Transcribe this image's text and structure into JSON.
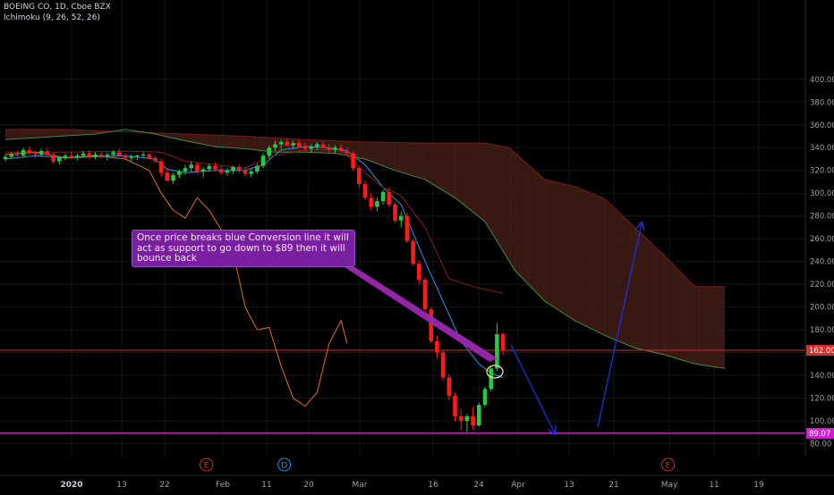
{
  "header": {
    "symbol_line": "BOEING CO, 1D, Cboe BZX",
    "indicator_line": "Ichimoku (9, 26, 52, 26)"
  },
  "annotation": {
    "text": "Once price breaks blue Conversion line it will act as support to go down to $89 then it will bounce back"
  },
  "colors": {
    "background": "#000000",
    "up_candle": "#26c846",
    "down_candle": "#ff1a1a",
    "conversion_line": "#2196f3",
    "base_line": "#8b1a1a",
    "lagging_span": "#e2701c",
    "span_a": "#3d8f3d",
    "span_b": "#7a1a1a",
    "cloud_fill": "#3a1a12",
    "level_line_red": "#d32f2f",
    "level_line_magenta": "#d020d0",
    "arrow": "#1e2fd6",
    "callout_bg": "#7b1fa2"
  },
  "chart_data": {
    "type": "candlestick",
    "title": "BOEING CO, 1D, Cboe BZX",
    "indicator": "Ichimoku (9, 26, 52, 26)",
    "ylim": [
      80,
      400
    ],
    "y_ticks": [
      "80.00",
      "100.00",
      "120.00",
      "140.00",
      "160.00",
      "180.00",
      "200.00",
      "220.00",
      "240.00",
      "260.00",
      "280.00",
      "300.00",
      "320.00",
      "340.00",
      "360.00",
      "380.00",
      "400.00"
    ],
    "x_ticks": [
      "2020",
      "13",
      "22",
      "Feb",
      "11",
      "20",
      "Mar",
      "16",
      "24",
      "Apr",
      "13",
      "21",
      "May",
      "11",
      "19"
    ],
    "price_labels": [
      {
        "value": 162.0,
        "label": "162.00",
        "color": "#d32f2f"
      },
      {
        "value": 89.07,
        "label": "89.07",
        "color": "#d020d0"
      }
    ],
    "event_markers": [
      {
        "letter": "E",
        "color": "#d32f2f",
        "slot": 38
      },
      {
        "letter": "D",
        "color": "#2196f3",
        "slot": 51
      },
      {
        "letter": "E",
        "color": "#d32f2f",
        "slot": 115
      }
    ],
    "candles": [
      [
        0,
        330,
        334,
        328,
        332
      ],
      [
        1,
        332,
        336,
        330,
        334
      ],
      [
        2,
        334,
        337,
        331,
        333
      ],
      [
        3,
        333,
        340,
        331,
        338
      ],
      [
        4,
        338,
        341,
        334,
        335
      ],
      [
        5,
        335,
        337,
        331,
        334
      ],
      [
        6,
        334,
        339,
        332,
        337
      ],
      [
        7,
        337,
        340,
        333,
        334
      ],
      [
        8,
        334,
        336,
        326,
        328
      ],
      [
        9,
        328,
        333,
        325,
        331
      ],
      [
        10,
        331,
        335,
        329,
        333
      ],
      [
        11,
        333,
        336,
        330,
        332
      ],
      [
        12,
        332,
        335,
        329,
        333
      ],
      [
        13,
        333,
        337,
        331,
        335
      ],
      [
        14,
        335,
        338,
        330,
        332
      ],
      [
        15,
        332,
        336,
        330,
        334
      ],
      [
        16,
        334,
        336,
        331,
        333
      ],
      [
        17,
        333,
        336,
        329,
        334
      ],
      [
        18,
        334,
        338,
        332,
        336
      ],
      [
        19,
        336,
        339,
        333,
        333
      ],
      [
        20,
        333,
        335,
        329,
        331
      ],
      [
        21,
        331,
        334,
        328,
        332
      ],
      [
        22,
        332,
        334,
        329,
        333
      ],
      [
        23,
        333,
        336,
        331,
        334
      ],
      [
        24,
        334,
        335,
        330,
        331
      ],
      [
        25,
        331,
        333,
        327,
        328
      ],
      [
        26,
        328,
        330,
        315,
        318
      ],
      [
        27,
        318,
        322,
        310,
        311
      ],
      [
        28,
        311,
        318,
        308,
        316
      ],
      [
        29,
        316,
        321,
        313,
        319
      ],
      [
        30,
        319,
        325,
        316,
        322
      ],
      [
        31,
        322,
        328,
        318,
        325
      ],
      [
        32,
        325,
        327,
        317,
        319
      ],
      [
        33,
        319,
        323,
        314,
        321
      ],
      [
        34,
        321,
        326,
        319,
        324
      ],
      [
        35,
        324,
        327,
        319,
        321
      ],
      [
        36,
        321,
        324,
        316,
        318
      ],
      [
        37,
        318,
        322,
        315,
        320
      ],
      [
        38,
        320,
        324,
        317,
        323
      ],
      [
        39,
        323,
        325,
        318,
        320
      ],
      [
        40,
        320,
        323,
        315,
        317
      ],
      [
        41,
        317,
        321,
        314,
        319
      ],
      [
        42,
        319,
        326,
        317,
        324
      ],
      [
        43,
        324,
        335,
        322,
        333
      ],
      [
        44,
        333,
        342,
        330,
        340
      ],
      [
        45,
        340,
        346,
        337,
        343
      ],
      [
        46,
        343,
        347,
        339,
        345
      ],
      [
        47,
        345,
        348,
        341,
        342
      ],
      [
        48,
        342,
        346,
        339,
        344
      ],
      [
        49,
        344,
        347,
        340,
        341
      ],
      [
        50,
        341,
        344,
        337,
        339
      ],
      [
        51,
        339,
        343,
        336,
        341
      ],
      [
        52,
        341,
        345,
        338,
        343
      ],
      [
        53,
        343,
        346,
        339,
        340
      ],
      [
        54,
        340,
        343,
        336,
        338
      ],
      [
        55,
        338,
        342,
        335,
        340
      ],
      [
        56,
        340,
        343,
        336,
        337
      ],
      [
        57,
        337,
        340,
        333,
        335
      ],
      [
        58,
        335,
        337,
        320,
        322
      ],
      [
        59,
        322,
        324,
        305,
        308
      ],
      [
        60,
        308,
        311,
        294,
        296
      ],
      [
        61,
        296,
        300,
        285,
        288
      ],
      [
        62,
        288,
        296,
        284,
        293
      ],
      [
        63,
        293,
        303,
        290,
        301
      ],
      [
        64,
        301,
        305,
        288,
        290
      ],
      [
        65,
        290,
        292,
        274,
        276
      ],
      [
        66,
        276,
        284,
        270,
        280
      ],
      [
        67,
        280,
        283,
        256,
        258
      ],
      [
        68,
        258,
        260,
        236,
        238
      ],
      [
        69,
        238,
        241,
        220,
        224
      ],
      [
        70,
        224,
        226,
        195,
        198
      ],
      [
        71,
        198,
        200,
        168,
        170
      ],
      [
        72,
        170,
        175,
        155,
        160
      ],
      [
        73,
        160,
        162,
        135,
        138
      ],
      [
        74,
        138,
        141,
        118,
        122
      ],
      [
        75,
        122,
        125,
        100,
        104
      ],
      [
        76,
        104,
        110,
        92,
        100
      ],
      [
        77,
        100,
        106,
        90,
        104
      ],
      [
        78,
        104,
        112,
        92,
        96
      ],
      [
        79,
        96,
        116,
        95,
        114
      ],
      [
        80,
        114,
        130,
        112,
        128
      ],
      [
        81,
        128,
        148,
        126,
        146
      ],
      [
        82,
        146,
        186,
        144,
        176
      ],
      [
        83,
        176,
        178,
        158,
        162
      ]
    ],
    "series": [
      {
        "name": "Conversion Line",
        "color": "#2196f3",
        "x": [
          0,
          5,
          10,
          15,
          20,
          25,
          27,
          30,
          35,
          40,
          43,
          46,
          50,
          54,
          57,
          60,
          63,
          66,
          70,
          73,
          76,
          79,
          81,
          83
        ],
        "y": [
          330,
          333,
          331,
          332,
          333,
          330,
          321,
          318,
          320,
          320,
          325,
          338,
          341,
          340,
          337,
          325,
          305,
          290,
          240,
          205,
          170,
          150,
          142,
          138
        ]
      },
      {
        "name": "Base Line",
        "color": "#8b1a1a",
        "x": [
          0,
          10,
          20,
          26,
          30,
          40,
          44,
          50,
          56,
          60,
          63,
          66,
          70,
          74,
          78,
          83
        ],
        "y": [
          336,
          336,
          337,
          336,
          328,
          322,
          332,
          338,
          338,
          318,
          305,
          298,
          270,
          225,
          218,
          212
        ]
      },
      {
        "name": "Lagging Span",
        "color": "#e2701c",
        "x": [
          0,
          5,
          10,
          15,
          20,
          24,
          26,
          28,
          30,
          32,
          34,
          36,
          38,
          40,
          42,
          44,
          46,
          48,
          50,
          52,
          54,
          56,
          57
        ],
        "y": [
          334,
          336,
          331,
          333,
          330,
          320,
          300,
          285,
          278,
          296,
          285,
          268,
          248,
          200,
          180,
          182,
          148,
          120,
          113,
          125,
          168,
          188,
          168
        ]
      }
    ],
    "cloud": {
      "span_a": {
        "x": [
          0,
          6,
          15,
          20,
          25,
          30,
          35,
          40,
          45,
          50,
          55,
          60,
          65,
          70,
          75,
          80,
          85,
          90,
          95,
          100,
          105,
          110,
          115,
          120
        ],
        "y": [
          347,
          349,
          352,
          356,
          352,
          346,
          341,
          339,
          336,
          336,
          335,
          330,
          320,
          312,
          296,
          275,
          232,
          205,
          188,
          175,
          164,
          158,
          150,
          146
        ]
      },
      "span_b": {
        "x": [
          0,
          10,
          20,
          30,
          40,
          50,
          60,
          70,
          80,
          84,
          90,
          95,
          100,
          105,
          110,
          115,
          120
        ],
        "y": [
          356,
          356,
          354,
          352,
          350,
          347,
          345,
          344,
          344,
          340,
          312,
          306,
          295,
          270,
          245,
          218,
          218
        ]
      }
    }
  }
}
